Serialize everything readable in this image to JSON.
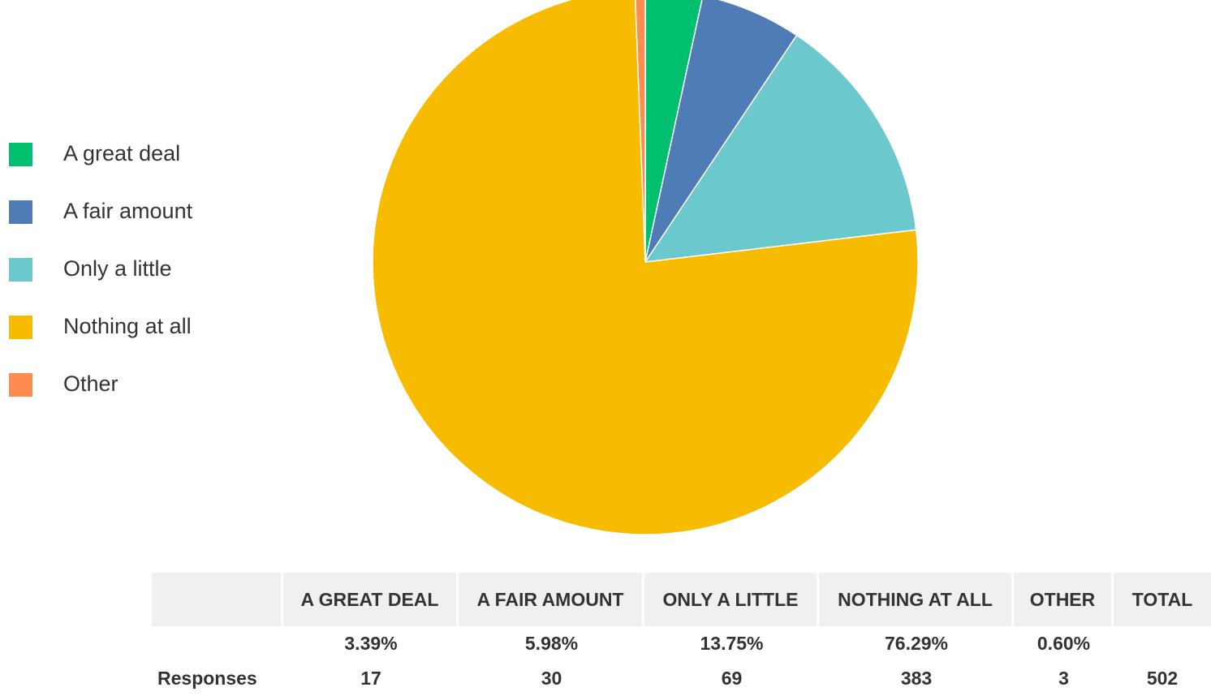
{
  "chart_data": {
    "type": "pie",
    "slices": [
      {
        "label": "A great deal",
        "percent": 3.39,
        "responses": 17,
        "color": "#00BF6F"
      },
      {
        "label": "A fair amount",
        "percent": 5.98,
        "responses": 30,
        "color": "#507CB6"
      },
      {
        "label": "Only a little",
        "percent": 13.75,
        "responses": 69,
        "color": "#6BC8CD"
      },
      {
        "label": "Nothing at all",
        "percent": 76.29,
        "responses": 383,
        "color": "#F7BB00"
      },
      {
        "label": "Other",
        "percent": 0.6,
        "responses": 3,
        "color": "#FF8B4F"
      }
    ],
    "legend_position": "left",
    "table": {
      "headers": [
        "",
        "A GREAT  DEAL",
        "A FAIR  AMOUNT",
        "ONLY A  LITTLE",
        "NOTHING AT  ALL",
        "OTHER",
        "TOTAL"
      ],
      "percent_row": [
        "",
        "3.39%",
        "5.98%",
        "13.75%",
        "76.29%",
        "0.60%",
        ""
      ],
      "responses_row": [
        "Responses",
        "17",
        "30",
        "69",
        "383",
        "3",
        "502"
      ]
    }
  }
}
